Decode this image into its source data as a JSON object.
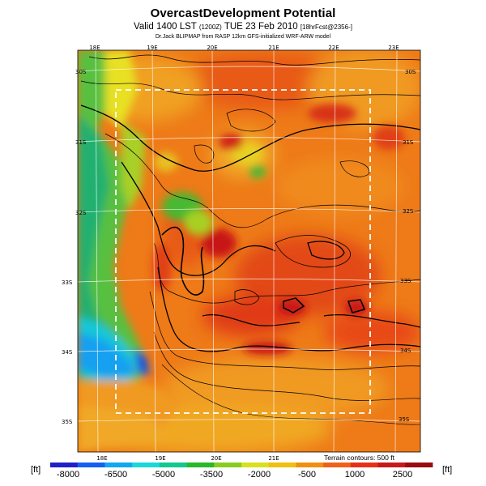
{
  "header": {
    "title": "OvercastDevelopment Potential",
    "subtitle_main": "Valid 1400 LST",
    "subtitle_utc": "(1200Z)",
    "subtitle_date": "TUE 23 Feb 2010",
    "subtitle_extra": "[18hrFcst@2356-]",
    "credit": "Dr.Jack BLIPMAP from RASP 12km GFS-initialized WRF-ARW model"
  },
  "map": {
    "lon_labels_top": [
      "18E",
      "19E",
      "20E",
      "21E",
      "22E",
      "23E"
    ],
    "lon_labels_bottom": [
      "18E",
      "19E",
      "20E",
      "21E"
    ],
    "lat_labels_left": [
      "30S",
      "31S",
      "32S",
      "33S",
      "34S",
      "35S"
    ],
    "lat_labels_right": [
      "30S",
      "31S",
      "32S",
      "33S",
      "34S",
      "35S"
    ],
    "terrain_note": "Terrain contours: 500 ft"
  },
  "legend": {
    "unit_left": "[ft]",
    "unit_right": "[ft]",
    "labels": [
      "-8000",
      "-6500",
      "-5000",
      "-3500",
      "-2000",
      "-500",
      "1000",
      "2500"
    ],
    "colors": [
      "#2020c8",
      "#1460f0",
      "#10a8f0",
      "#18d8d8",
      "#10c890",
      "#28b828",
      "#88cc20",
      "#d8e020",
      "#f0c010",
      "#f09010",
      "#f06018",
      "#e83018",
      "#c81818",
      "#980c10"
    ]
  }
}
